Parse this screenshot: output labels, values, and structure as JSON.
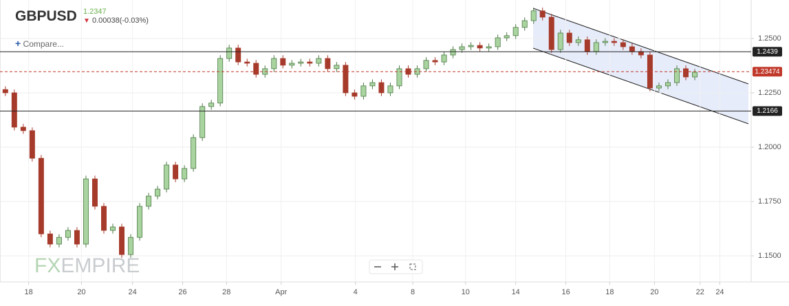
{
  "header": {
    "symbol": "GBPUSD",
    "last_price": 1.2347,
    "change": "0.00038(-0.03%)",
    "compare": "Compare...",
    "watermark_parts": [
      "FX",
      "EMPIRE"
    ]
  },
  "chart_data": {
    "type": "candlestick",
    "up_color": "#a9d4a0",
    "down_color": "#a63a2b",
    "grid": true,
    "xlim": [
      -0.6,
      83.3
    ],
    "xticks": [
      {
        "value": 2.6,
        "label": "18"
      },
      {
        "value": 8.5,
        "label": "20"
      },
      {
        "value": 14.2,
        "label": "24"
      },
      {
        "value": 19.8,
        "label": "26"
      },
      {
        "value": 24.7,
        "label": "28"
      },
      {
        "value": 30.8,
        "label": "Apr"
      },
      {
        "value": 39.1,
        "label": "4"
      },
      {
        "value": 45.5,
        "label": "8"
      },
      {
        "value": 51.4,
        "label": "10"
      },
      {
        "value": 57,
        "label": "14"
      },
      {
        "value": 62.6,
        "label": "16"
      },
      {
        "value": 67.5,
        "label": "18"
      },
      {
        "value": 72.5,
        "label": "20"
      },
      {
        "value": 77.6,
        "label": "22"
      },
      {
        "value": 79.8,
        "label": "24"
      }
    ],
    "ylim": [
      1.138,
      1.2677
    ],
    "yticks": [
      {
        "value": 1.15,
        "label": "1.1500"
      },
      {
        "value": 1.175,
        "label": "1.1750"
      },
      {
        "value": 1.2,
        "label": "1.2000"
      },
      {
        "value": 1.225,
        "label": "1.2250"
      },
      {
        "value": 1.25,
        "label": "1.2500"
      }
    ],
    "hlines": [
      {
        "value": 1.2439,
        "color": "#222222",
        "dashed": false
      },
      {
        "value": 1.23474,
        "color": "#c0392b",
        "dashed": true
      },
      {
        "value": 1.2166,
        "color": "#222222",
        "dashed": false
      }
    ],
    "x": [
      0,
      1,
      2,
      3,
      4,
      5,
      6,
      7,
      8,
      9,
      10,
      11,
      12,
      13,
      14,
      15,
      16,
      17,
      18,
      19,
      20,
      21,
      22,
      23,
      24,
      25,
      26,
      27,
      28,
      29,
      30,
      31,
      32,
      33,
      34,
      35,
      36,
      37,
      38,
      39,
      40,
      41,
      42,
      43,
      44,
      45,
      46,
      47,
      48,
      49,
      50,
      51,
      52,
      53,
      54,
      55,
      56,
      57,
      58,
      59,
      60,
      61,
      62,
      63,
      64,
      65,
      66,
      67,
      68,
      69,
      70,
      71,
      72,
      73,
      74,
      75,
      76,
      77
    ],
    "open": [
      1.2265,
      1.225,
      1.2092,
      1.2076,
      1.1949,
      1.1601,
      1.1554,
      1.1585,
      1.1617,
      1.1554,
      1.1854,
      1.1728,
      1.1617,
      1.1633,
      1.1506,
      1.1585,
      1.1728,
      1.1775,
      1.1807,
      1.1918,
      1.1854,
      1.1902,
      1.2044,
      1.2187,
      1.2203,
      1.2408,
      1.2456,
      1.2392,
      1.2386,
      1.2335,
      1.2361,
      1.2408,
      1.2377,
      1.2386,
      1.2392,
      1.2386,
      1.2408,
      1.2361,
      1.2377,
      1.225,
      1.2234,
      1.2282,
      1.2297,
      1.225,
      1.2282,
      1.2361,
      1.2335,
      1.2361,
      1.2399,
      1.2392,
      1.2424,
      1.2449,
      1.2462,
      1.2468,
      1.2456,
      1.2462,
      1.2503,
      1.2513,
      1.2551,
      1.2582,
      1.2627,
      1.2598,
      1.2449,
      1.2525,
      1.2481,
      1.2494,
      1.244,
      1.2481,
      1.2487,
      1.2481,
      1.2462,
      1.244,
      1.2424,
      1.2272,
      1.2282,
      1.2297,
      1.2361,
      1.2323
    ],
    "high": [
      1.228,
      1.2265,
      1.2107,
      1.2091,
      1.1964,
      1.1616,
      1.16,
      1.1632,
      1.1632,
      1.1869,
      1.1869,
      1.1743,
      1.1648,
      1.1648,
      1.16,
      1.1743,
      1.179,
      1.1822,
      1.1933,
      1.1933,
      1.1917,
      1.2059,
      1.2202,
      1.2218,
      1.2423,
      1.2471,
      1.2471,
      1.2407,
      1.2401,
      1.2376,
      1.2423,
      1.2423,
      1.2401,
      1.2407,
      1.2407,
      1.2423,
      1.2423,
      1.2392,
      1.2392,
      1.2265,
      1.2297,
      1.2312,
      1.2312,
      1.2297,
      1.2376,
      1.2376,
      1.2376,
      1.2414,
      1.2414,
      1.2439,
      1.2464,
      1.2477,
      1.2483,
      1.2483,
      1.2477,
      1.2518,
      1.2528,
      1.2566,
      1.2597,
      1.2642,
      1.2642,
      1.2613,
      1.254,
      1.254,
      1.2509,
      1.2509,
      1.2496,
      1.2502,
      1.2502,
      1.2496,
      1.2477,
      1.2455,
      1.2439,
      1.2297,
      1.2312,
      1.2376,
      1.2376,
      1.236
    ],
    "low": [
      1.2235,
      1.2077,
      1.2061,
      1.1934,
      1.1586,
      1.1539,
      1.1539,
      1.157,
      1.1539,
      1.1539,
      1.1713,
      1.1602,
      1.1602,
      1.1491,
      1.1491,
      1.157,
      1.1713,
      1.176,
      1.1792,
      1.1839,
      1.1839,
      1.1887,
      1.2029,
      1.2172,
      1.2188,
      1.2393,
      1.2377,
      1.2371,
      1.232,
      1.232,
      1.2346,
      1.2362,
      1.2362,
      1.2371,
      1.2371,
      1.2371,
      1.2346,
      1.2346,
      1.2235,
      1.2219,
      1.2219,
      1.2267,
      1.2235,
      1.2235,
      1.2267,
      1.232,
      1.232,
      1.2346,
      1.2377,
      1.2377,
      1.2409,
      1.2434,
      1.2447,
      1.2441,
      1.2441,
      1.2447,
      1.2488,
      1.2498,
      1.2536,
      1.2567,
      1.2583,
      1.2434,
      1.2434,
      1.2466,
      1.2466,
      1.2425,
      1.2425,
      1.2466,
      1.2466,
      1.2447,
      1.2425,
      1.2409,
      1.2257,
      1.2257,
      1.2267,
      1.2282,
      1.2308,
      1.2308
    ],
    "close": [
      1.225,
      1.2092,
      1.2076,
      1.1949,
      1.1601,
      1.1554,
      1.1585,
      1.1617,
      1.1554,
      1.1854,
      1.1728,
      1.1617,
      1.1633,
      1.1506,
      1.1585,
      1.1728,
      1.1775,
      1.1807,
      1.1918,
      1.1854,
      1.1902,
      1.2044,
      1.2187,
      1.2203,
      1.2408,
      1.2456,
      1.2392,
      1.2386,
      1.2335,
      1.2361,
      1.2408,
      1.2377,
      1.2386,
      1.2392,
      1.2386,
      1.2408,
      1.2361,
      1.2377,
      1.225,
      1.2234,
      1.2282,
      1.2297,
      1.225,
      1.2282,
      1.2361,
      1.2335,
      1.2361,
      1.2399,
      1.2392,
      1.2424,
      1.2449,
      1.2462,
      1.2468,
      1.2456,
      1.2462,
      1.2503,
      1.2513,
      1.2551,
      1.2582,
      1.2627,
      1.2598,
      1.2449,
      1.2525,
      1.2481,
      1.2494,
      1.244,
      1.2481,
      1.2487,
      1.2481,
      1.2462,
      1.244,
      1.2424,
      1.2272,
      1.2282,
      1.2297,
      1.2361,
      1.2323,
      1.2345
    ]
  }
}
